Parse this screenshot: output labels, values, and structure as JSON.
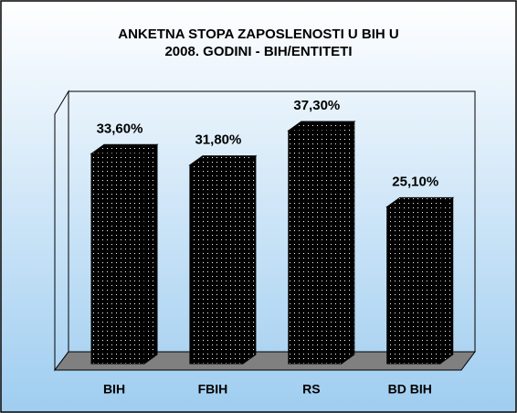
{
  "chart_data": {
    "type": "bar",
    "title": [
      "ANKETNA STOPA ZAPOSLENOSTI U BIH U",
      "2008. GODINI - BIH/ENTITETI"
    ],
    "categories": [
      "BIH",
      "FBIH",
      "RS",
      "BD BIH"
    ],
    "values": [
      33.6,
      31.8,
      37.3,
      25.1
    ],
    "value_labels": [
      "33,60%",
      "31,80%",
      "37,30%",
      "25,10%"
    ],
    "color": "#000000"
  }
}
